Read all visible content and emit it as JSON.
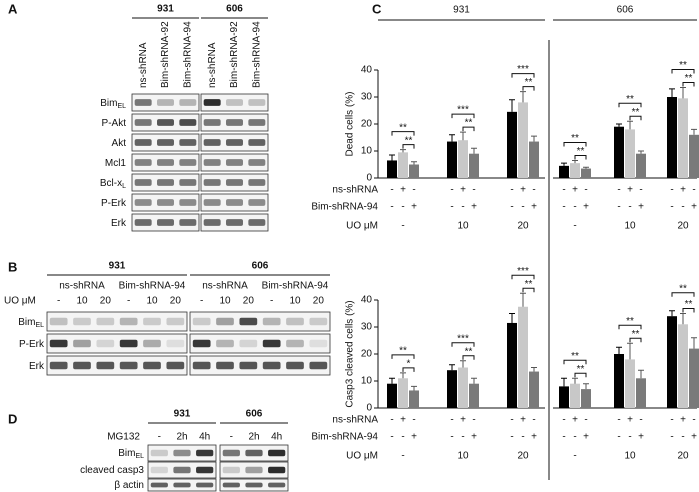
{
  "panel_a": {
    "label": "A",
    "groups": [
      "931",
      "606"
    ],
    "lanes": [
      "ns-shRNA",
      "Bim-shRNA-92",
      "Bim-shRNA-94"
    ],
    "rows": [
      {
        "text": "Bim",
        "sub": "EL"
      },
      {
        "text": "P-Akt"
      },
      {
        "text": "Akt"
      },
      {
        "text": "Mcl1"
      },
      {
        "text": "Bcl-x",
        "sub": "L"
      },
      {
        "text": "P-Erk"
      },
      {
        "text": "Erk"
      }
    ]
  },
  "panel_b": {
    "label": "B",
    "groups": [
      "931",
      "606"
    ],
    "subgroups": [
      "ns-shRNA",
      "Bim-shRNA-94"
    ],
    "dose_label": "UO μM",
    "doses": [
      "-",
      "10",
      "20"
    ],
    "rows": [
      {
        "text": "Bim",
        "sub": "EL"
      },
      {
        "text": "P-Erk"
      },
      {
        "text": "Erk"
      }
    ]
  },
  "panel_c_label": "C",
  "panel_d": {
    "label": "D",
    "groups": [
      "931",
      "606"
    ],
    "treatment_label": "MG132",
    "times": [
      "-",
      "2h",
      "4h"
    ],
    "rows": [
      {
        "text": "Bim",
        "sub": "EL"
      },
      {
        "text": "cleaved casp3"
      },
      {
        "text": "β actin"
      }
    ]
  },
  "chart_data": [
    {
      "type": "bar",
      "ylabel": "Dead cells (%)",
      "groups": [
        "931",
        "606"
      ],
      "category_label": "UO μM",
      "categories": [
        "-",
        "10",
        "20",
        "-",
        "10",
        "20"
      ],
      "ylim": [
        0,
        40
      ],
      "yticks": [
        0,
        10,
        20,
        30,
        40
      ],
      "condition_rows": [
        {
          "label": "ns-shRNA",
          "signs": [
            "-",
            "+",
            "-"
          ]
        },
        {
          "label": "Bim-shRNA-94",
          "signs": [
            "-",
            "-",
            "+"
          ]
        }
      ],
      "series": [
        {
          "color": "#000000",
          "values": [
            6.5,
            13.5,
            24.5,
            4.5,
            19,
            30
          ],
          "errors": [
            2,
            2.5,
            4.5,
            1,
            1,
            3
          ]
        },
        {
          "color": "#c8c8c8",
          "values": [
            9.5,
            14,
            28,
            5.5,
            18,
            29.5
          ],
          "errors": [
            1,
            3,
            4,
            1,
            3,
            4
          ]
        },
        {
          "color": "#7a7a7a",
          "values": [
            5,
            9,
            13.5,
            3.5,
            9,
            16
          ],
          "errors": [
            1,
            2,
            2,
            0.5,
            1,
            2
          ]
        }
      ],
      "significance": [
        [
          "**",
          "**"
        ],
        [
          "***",
          "**"
        ],
        [
          "***",
          "**"
        ],
        [
          "**",
          "**"
        ],
        [
          "**",
          "**"
        ],
        [
          "**",
          "**"
        ]
      ]
    },
    {
      "type": "bar",
      "ylabel": "Casp3 cleaved cells (%)",
      "category_label": "UO μM",
      "categories": [
        "-",
        "10",
        "20",
        "-",
        "10",
        "20"
      ],
      "ylim": [
        0,
        40
      ],
      "yticks": [
        0,
        10,
        20,
        30,
        40
      ],
      "condition_rows": [
        {
          "label": "ns-shRNA",
          "signs": [
            "-",
            "+",
            "-"
          ]
        },
        {
          "label": "Bim-shRNA-94",
          "signs": [
            "-",
            "-",
            "+"
          ]
        }
      ],
      "series": [
        {
          "color": "#000000",
          "values": [
            9,
            14,
            31.5,
            8,
            20,
            34
          ],
          "errors": [
            2,
            2,
            3.5,
            3,
            2.5,
            2
          ]
        },
        {
          "color": "#c8c8c8",
          "values": [
            11,
            15,
            37.5,
            9,
            18,
            31
          ],
          "errors": [
            2,
            2.5,
            5,
            2,
            6,
            4
          ]
        },
        {
          "color": "#7a7a7a",
          "values": [
            6.5,
            9,
            13.5,
            7,
            11,
            22
          ],
          "errors": [
            1.5,
            2,
            1.5,
            2,
            3,
            4
          ]
        }
      ],
      "significance": [
        [
          "**",
          "*"
        ],
        [
          "***",
          "**"
        ],
        [
          "***",
          "**"
        ],
        [
          "**",
          "**"
        ],
        [
          "**",
          "**"
        ],
        [
          "**",
          "**"
        ]
      ]
    }
  ]
}
